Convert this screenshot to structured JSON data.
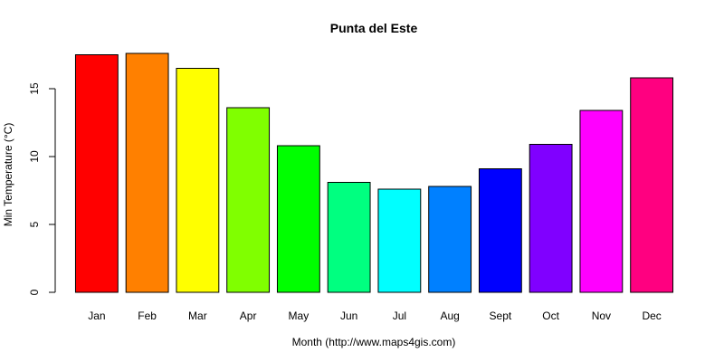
{
  "chart_data": {
    "type": "bar",
    "title": "Punta del Este",
    "xlabel": "Month (http://www.maps4gis.com)",
    "ylabel": "Min Temperature (°C)",
    "categories": [
      "Jan",
      "Feb",
      "Mar",
      "Apr",
      "May",
      "Jun",
      "Jul",
      "Aug",
      "Sept",
      "Oct",
      "Nov",
      "Dec"
    ],
    "values": [
      17.5,
      17.6,
      16.5,
      13.6,
      10.8,
      8.1,
      7.6,
      7.8,
      9.1,
      10.9,
      13.4,
      15.8
    ],
    "colors": [
      "#FF0000",
      "#FF8000",
      "#FFFF00",
      "#80FF00",
      "#00FF00",
      "#00FF80",
      "#00FFFF",
      "#0080FF",
      "#0000FF",
      "#8000FF",
      "#FF00FF",
      "#FF0080"
    ],
    "yticks": [
      0,
      5,
      10,
      15
    ],
    "ylim": [
      0,
      18.5
    ],
    "grid": false,
    "legend": "none"
  }
}
